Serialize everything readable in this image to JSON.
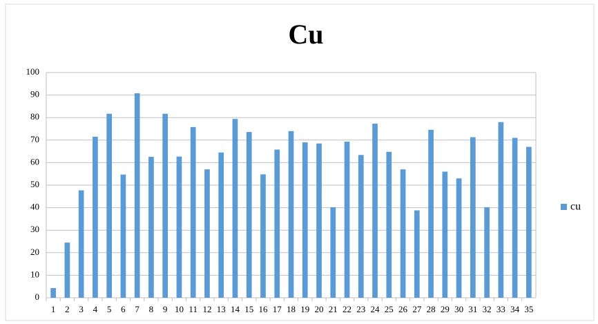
{
  "chart_data": {
    "type": "bar",
    "title": "Cu",
    "categories": [
      "1",
      "2",
      "3",
      "4",
      "5",
      "6",
      "7",
      "8",
      "9",
      "10",
      "11",
      "12",
      "13",
      "14",
      "15",
      "16",
      "17",
      "18",
      "19",
      "20",
      "21",
      "22",
      "23",
      "24",
      "25",
      "26",
      "27",
      "28",
      "29",
      "30",
      "31",
      "32",
      "33",
      "34",
      "35"
    ],
    "series": [
      {
        "name": "cu",
        "color": "#5b9bd5",
        "values": [
          4.3,
          24.5,
          47.7,
          71.5,
          81.7,
          54.7,
          90.8,
          62.6,
          81.7,
          62.7,
          75.8,
          57,
          64.5,
          79.4,
          73.6,
          54.8,
          65.8,
          74,
          69,
          68.5,
          40.2,
          69.3,
          63.4,
          77.3,
          64.8,
          57,
          38.8,
          74.6,
          56,
          53,
          71.3,
          40.2,
          78,
          71,
          67
        ]
      }
    ],
    "ylim": [
      0,
      100
    ],
    "yticks": [
      0,
      10,
      20,
      30,
      40,
      50,
      60,
      70,
      80,
      90,
      100
    ],
    "grid": true,
    "legend": "right"
  }
}
